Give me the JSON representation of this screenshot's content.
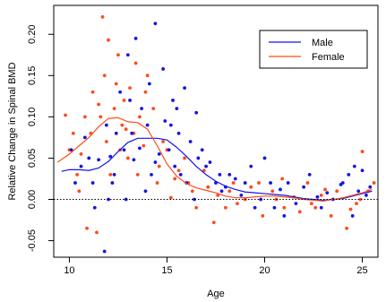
{
  "chart_data": {
    "type": "scatter",
    "title": "",
    "xlabel": "Age",
    "ylabel": "Relative Change in Spinal BMD",
    "xlim": [
      9.2,
      25.8
    ],
    "ylim": [
      -0.07,
      0.235
    ],
    "x_ticks": [
      10,
      15,
      20,
      25
    ],
    "y_ticks": [
      -0.05,
      0.0,
      0.05,
      0.1,
      0.15,
      0.2
    ],
    "y_tick_labels": [
      "-0.05",
      "0.00",
      "0.05",
      "0.10",
      "0.15",
      "0.20"
    ],
    "reference_line": {
      "y": 0.0,
      "style": "dotted"
    },
    "grid": false,
    "legend": {
      "position": "top-right"
    },
    "colors": {
      "male": "#1414e6",
      "female": "#ff4a1a",
      "axis": "#000000"
    },
    "series": [
      {
        "name": "Male",
        "smooth_curve": [
          [
            9.6,
            0.034
          ],
          [
            10,
            0.036
          ],
          [
            10.5,
            0.036
          ],
          [
            11,
            0.035
          ],
          [
            11.5,
            0.038
          ],
          [
            12,
            0.046
          ],
          [
            12.5,
            0.058
          ],
          [
            13,
            0.069
          ],
          [
            13.5,
            0.074
          ],
          [
            14,
            0.074
          ],
          [
            14.5,
            0.074
          ],
          [
            15,
            0.072
          ],
          [
            15.5,
            0.063
          ],
          [
            16,
            0.052
          ],
          [
            16.5,
            0.04
          ],
          [
            17,
            0.03
          ],
          [
            17.5,
            0.022
          ],
          [
            18,
            0.016
          ],
          [
            18.5,
            0.012
          ],
          [
            19,
            0.009
          ],
          [
            19.5,
            0.008
          ],
          [
            20,
            0.007
          ],
          [
            20.5,
            0.006
          ],
          [
            21,
            0.005
          ],
          [
            21.5,
            0.003
          ],
          [
            22,
            0.001
          ],
          [
            22.5,
            0.0
          ],
          [
            23,
            -0.001
          ],
          [
            23.5,
            0.0
          ],
          [
            24,
            0.001
          ],
          [
            24.5,
            0.004
          ],
          [
            25,
            0.007
          ],
          [
            25.5,
            0.01
          ]
        ],
        "points": [
          [
            11.8,
            -0.063
          ],
          [
            12.3,
            0.03
          ],
          [
            13.0,
            0.175
          ],
          [
            13.4,
            0.195
          ],
          [
            14.4,
            0.213
          ],
          [
            14.8,
            0.158
          ],
          [
            15.5,
            0.11
          ],
          [
            15.9,
            0.135
          ],
          [
            16.5,
            0.105
          ],
          [
            10.6,
            0.04
          ],
          [
            12.1,
            0.052
          ],
          [
            13.2,
            0.08
          ],
          [
            14.0,
            0.09
          ],
          [
            16.2,
            0.07
          ],
          [
            17.0,
            0.04
          ],
          [
            18.2,
            0.03
          ],
          [
            19.0,
            0.02
          ],
          [
            20.0,
            0.05
          ],
          [
            22.0,
            0.015
          ],
          [
            24.3,
            0.03
          ],
          [
            25.0,
            0.035
          ],
          [
            10.8,
            0.075
          ],
          [
            12.6,
            0.13
          ],
          [
            13.7,
            0.11
          ],
          [
            15.3,
            0.12
          ],
          [
            17.5,
            0.02
          ],
          [
            19.5,
            -0.01
          ],
          [
            21.2,
            0.02
          ],
          [
            23.5,
            0.0
          ],
          [
            24.5,
            -0.02
          ],
          [
            11.2,
            0.02
          ],
          [
            12.9,
            0.0
          ],
          [
            13.9,
            0.01
          ],
          [
            14.6,
            0.055
          ],
          [
            15.1,
            0.06
          ],
          [
            16.8,
            0.06
          ],
          [
            18.8,
            0.005
          ],
          [
            20.5,
            -0.01
          ],
          [
            22.7,
            0.003
          ],
          [
            23.9,
            0.018
          ],
          [
            11.5,
            0.048
          ],
          [
            12.4,
            0.08
          ],
          [
            13.3,
            0.048
          ],
          [
            14.2,
            0.03
          ],
          [
            15.7,
            0.03
          ],
          [
            16.4,
            0.0
          ],
          [
            17.8,
            0.01
          ],
          [
            19.3,
            0.04
          ],
          [
            21.6,
            -0.005
          ],
          [
            25.2,
            0.005
          ],
          [
            10.3,
            0.02
          ],
          [
            11.9,
            0.09
          ],
          [
            13.1,
            0.12
          ],
          [
            14.9,
            0.095
          ],
          [
            15.6,
            0.08
          ],
          [
            17.2,
            0.045
          ],
          [
            18.5,
            0.025
          ],
          [
            20.8,
            0.012
          ],
          [
            22.3,
            0.03
          ],
          [
            24.8,
            0.01
          ],
          [
            10.1,
            0.06
          ],
          [
            11.0,
            0.05
          ],
          [
            12.0,
            0.0
          ],
          [
            12.8,
            0.06
          ],
          [
            13.6,
            0.062
          ],
          [
            14.4,
            0.045
          ],
          [
            15.4,
            0.04
          ],
          [
            16.0,
            0.02
          ],
          [
            17.7,
            0.03
          ],
          [
            19.8,
            0.0
          ],
          [
            21.0,
            -0.02
          ],
          [
            22.9,
            -0.01
          ],
          [
            24.0,
            0.02
          ],
          [
            25.4,
            0.015
          ],
          [
            11.3,
            -0.01
          ],
          [
            12.2,
            0.02
          ],
          [
            14.1,
            0.14
          ],
          [
            15.2,
            0.09
          ],
          [
            16.6,
            0.05
          ],
          [
            18.0,
            0.015
          ],
          [
            20.3,
            0.02
          ],
          [
            23.2,
            0.008
          ],
          [
            24.6,
            0.04
          ]
        ]
      },
      {
        "name": "Female",
        "smooth_curve": [
          [
            9.4,
            0.045
          ],
          [
            10,
            0.055
          ],
          [
            10.5,
            0.065
          ],
          [
            11,
            0.075
          ],
          [
            11.5,
            0.088
          ],
          [
            12,
            0.098
          ],
          [
            12.5,
            0.099
          ],
          [
            13,
            0.094
          ],
          [
            13.5,
            0.093
          ],
          [
            14,
            0.085
          ],
          [
            14.5,
            0.065
          ],
          [
            15,
            0.043
          ],
          [
            15.5,
            0.028
          ],
          [
            16,
            0.019
          ],
          [
            16.5,
            0.014
          ],
          [
            17,
            0.011
          ],
          [
            17.5,
            0.008
          ],
          [
            18,
            0.004
          ],
          [
            18.5,
            0.002
          ],
          [
            19,
            0.002
          ],
          [
            19.5,
            0.003
          ],
          [
            20,
            0.004
          ],
          [
            20.5,
            0.004
          ],
          [
            21,
            0.003
          ],
          [
            21.5,
            0.002
          ],
          [
            22,
            0.0
          ],
          [
            22.5,
            -0.001
          ],
          [
            23,
            -0.002
          ],
          [
            23.5,
            0.0
          ],
          [
            24,
            0.002
          ],
          [
            24.5,
            0.005
          ],
          [
            25,
            0.008
          ],
          [
            25.5,
            0.012
          ]
        ],
        "points": [
          [
            11.7,
            0.221
          ],
          [
            12.0,
            0.193
          ],
          [
            12.5,
            0.175
          ],
          [
            13.4,
            0.165
          ],
          [
            12.4,
            0.14
          ],
          [
            14.0,
            0.15
          ],
          [
            13.1,
            0.135
          ],
          [
            11.2,
            0.13
          ],
          [
            12.8,
            0.12
          ],
          [
            10.8,
            0.1
          ],
          [
            11.5,
            0.115
          ],
          [
            12.9,
            0.085
          ],
          [
            13.8,
            0.065
          ],
          [
            15.0,
            0.06
          ],
          [
            15.6,
            0.035
          ],
          [
            16.1,
            0.02
          ],
          [
            17.1,
            0.015
          ],
          [
            18.2,
            0.01
          ],
          [
            19.0,
            0.0
          ],
          [
            20.4,
            0.01
          ],
          [
            21.5,
            0.003
          ],
          [
            22.6,
            -0.01
          ],
          [
            23.4,
            -0.02
          ],
          [
            24.2,
            -0.035
          ],
          [
            25.0,
            0.058
          ],
          [
            9.8,
            0.102
          ],
          [
            10.2,
            0.08
          ],
          [
            10.4,
            0.03
          ],
          [
            10.9,
            -0.035
          ],
          [
            11.4,
            -0.04
          ],
          [
            12.1,
            0.03
          ],
          [
            13.0,
            0.05
          ],
          [
            13.6,
            0.1
          ],
          [
            14.3,
            0.11
          ],
          [
            15.2,
            0.002
          ],
          [
            16.5,
            -0.01
          ],
          [
            17.4,
            -0.028
          ],
          [
            18.6,
            -0.005
          ],
          [
            19.7,
            0.02
          ],
          [
            21.0,
            -0.01
          ],
          [
            22.2,
            0.02
          ],
          [
            23.7,
            0.01
          ],
          [
            24.9,
            0.0
          ],
          [
            25.6,
            0.02
          ],
          [
            10.6,
            0.055
          ],
          [
            11.1,
            0.08
          ],
          [
            11.9,
            0.07
          ],
          [
            12.6,
            0.06
          ],
          [
            13.3,
            0.08
          ],
          [
            14.6,
            0.04
          ],
          [
            15.4,
            0.025
          ],
          [
            16.9,
            0.035
          ],
          [
            18.0,
            -0.01
          ],
          [
            19.3,
            0.015
          ],
          [
            20.9,
            0.025
          ],
          [
            22.9,
            0.005
          ],
          [
            24.4,
            -0.012
          ],
          [
            10.0,
            0.06
          ],
          [
            11.6,
            0.1
          ],
          [
            12.3,
            0.11
          ],
          [
            13.9,
            0.13
          ],
          [
            14.8,
            0.07
          ],
          [
            15.9,
            0.05
          ],
          [
            17.6,
            0.005
          ],
          [
            19.9,
            -0.02
          ],
          [
            21.8,
            -0.015
          ],
          [
            23.1,
            0.012
          ],
          [
            24.7,
            -0.005
          ],
          [
            10.5,
            0.01
          ],
          [
            11.8,
            0.15
          ],
          [
            12.7,
            0.09
          ],
          [
            13.5,
            0.03
          ],
          [
            14.5,
            0.02
          ],
          [
            16.3,
            0.01
          ],
          [
            18.4,
            0.02
          ],
          [
            20.6,
            0.0
          ],
          [
            22.4,
            -0.005
          ],
          [
            25.3,
            0.01
          ]
        ]
      }
    ]
  }
}
